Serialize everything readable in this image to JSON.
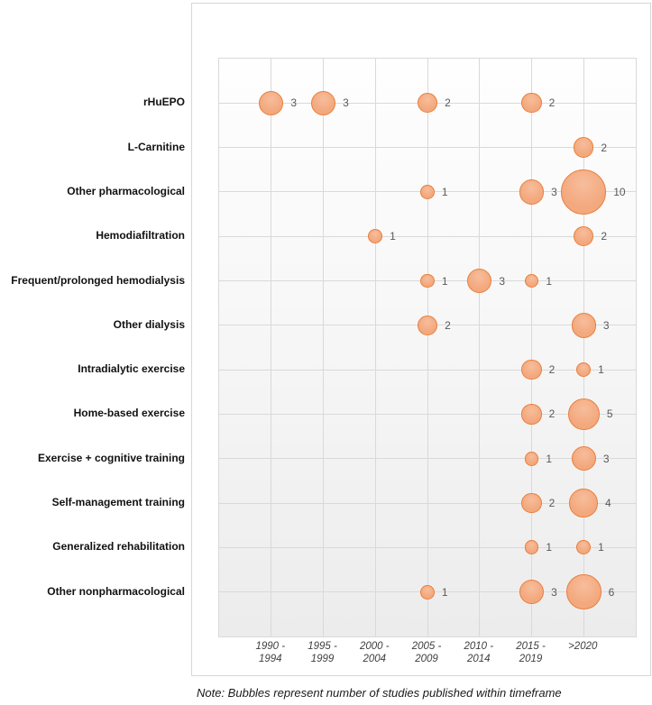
{
  "note": "Note: Bubbles represent number of studies published within timeframe",
  "style": {
    "bubble_fill": "#F3A87D",
    "bubble_fill_light": "#F7BD9C",
    "bubble_border": "#E87F3D",
    "gridline": "#D9D9D9",
    "value_label_color": "#595959"
  },
  "chart_data": {
    "type": "bubble",
    "title": "",
    "xlabel": "",
    "ylabel": "",
    "legend": "none",
    "grid": true,
    "x_categories": [
      "1990 -\n1994",
      "1995 -\n1999",
      "2000 -\n2004",
      "2005 -\n2009",
      "2010 -\n2014",
      "2015 -\n2019",
      ">2020"
    ],
    "series": [
      {
        "category": "rHuEPO",
        "points": [
          {
            "col": 0,
            "value": 3
          },
          {
            "col": 1,
            "value": 3
          },
          {
            "col": 3,
            "value": 2
          },
          {
            "col": 5,
            "value": 2
          }
        ]
      },
      {
        "category": "L-Carnitine",
        "points": [
          {
            "col": 6,
            "value": 2
          }
        ]
      },
      {
        "category": "Other pharmacological",
        "points": [
          {
            "col": 3,
            "value": 1
          },
          {
            "col": 5,
            "value": 3
          },
          {
            "col": 6,
            "value": 10
          }
        ]
      },
      {
        "category": "Hemodiafiltration",
        "points": [
          {
            "col": 2,
            "value": 1
          },
          {
            "col": 6,
            "value": 2
          }
        ]
      },
      {
        "category": "Frequent/prolonged hemodialysis",
        "points": [
          {
            "col": 3,
            "value": 1
          },
          {
            "col": 4,
            "value": 3
          },
          {
            "col": 5,
            "value": 1
          }
        ]
      },
      {
        "category": "Other dialysis",
        "points": [
          {
            "col": 3,
            "value": 2
          },
          {
            "col": 6,
            "value": 3
          }
        ]
      },
      {
        "category": "Intradialytic exercise",
        "points": [
          {
            "col": 5,
            "value": 2
          },
          {
            "col": 6,
            "value": 1
          }
        ]
      },
      {
        "category": "Home-based exercise",
        "points": [
          {
            "col": 5,
            "value": 2
          },
          {
            "col": 6,
            "value": 5
          }
        ]
      },
      {
        "category": "Exercise + cognitive training",
        "points": [
          {
            "col": 5,
            "value": 1
          },
          {
            "col": 6,
            "value": 3
          }
        ]
      },
      {
        "category": "Self-management training",
        "points": [
          {
            "col": 5,
            "value": 2
          },
          {
            "col": 6,
            "value": 4
          }
        ]
      },
      {
        "category": "Generalized rehabilitation",
        "points": [
          {
            "col": 5,
            "value": 1
          },
          {
            "col": 6,
            "value": 1
          }
        ]
      },
      {
        "category": "Other nonpharmacological",
        "points": [
          {
            "col": 3,
            "value": 1
          },
          {
            "col": 5,
            "value": 3
          },
          {
            "col": 6,
            "value": 6
          }
        ]
      }
    ]
  }
}
